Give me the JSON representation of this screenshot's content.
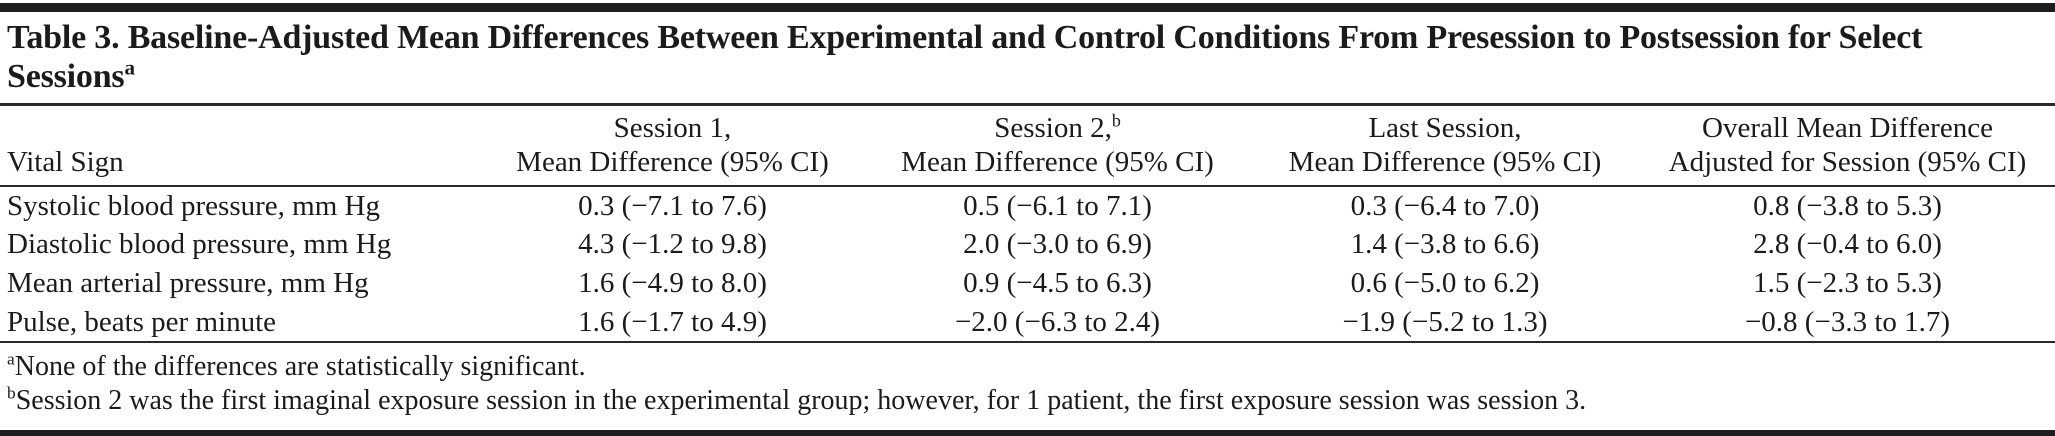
{
  "table": {
    "title": "Table 3. Baseline-Adjusted Mean Differences Between Experimental and Control Conditions From Presession to Postsession for Select Sessions",
    "title_footnote_marker": "a",
    "columns": [
      {
        "line1": "",
        "sup": "",
        "line2": "Vital Sign"
      },
      {
        "line1": "Session 1,",
        "sup": "",
        "line2": "Mean Difference (95% CI)"
      },
      {
        "line1": "Session 2,",
        "sup": "b",
        "line2": "Mean Difference (95% CI)"
      },
      {
        "line1": "Last Session,",
        "sup": "",
        "line2": "Mean Difference (95% CI)"
      },
      {
        "line1": "Overall Mean Difference",
        "sup": "",
        "line2": "Adjusted for Session (95% CI)"
      }
    ],
    "rows": [
      {
        "vital_sign": "Systolic blood pressure, mm Hg",
        "session1": "0.3 (−7.1 to 7.6)",
        "session2": "0.5 (−6.1 to 7.1)",
        "last_session": "0.3 (−6.4 to 7.0)",
        "overall": "0.8 (−3.8 to 5.3)"
      },
      {
        "vital_sign": "Diastolic blood pressure, mm Hg",
        "session1": "4.3 (−1.2 to 9.8)",
        "session2": "2.0 (−3.0 to 6.9)",
        "last_session": "1.4 (−3.8 to 6.6)",
        "overall": "2.8 (−0.4 to 6.0)"
      },
      {
        "vital_sign": "Mean arterial pressure, mm Hg",
        "session1": "1.6 (−4.9 to 8.0)",
        "session2": "0.9 (−4.5 to 6.3)",
        "last_session": "0.6 (−5.0 to 6.2)",
        "overall": "1.5 (−2.3 to 5.3)"
      },
      {
        "vital_sign": "Pulse, beats per minute",
        "session1": "1.6 (−1.7 to 4.9)",
        "session2": "−2.0 (−6.3 to 2.4)",
        "last_session": "−1.9 (−5.2 to 1.3)",
        "overall": "−0.8 (−3.3 to 1.7)"
      }
    ],
    "footnotes": [
      {
        "marker": "a",
        "text": "None of the differences are statistically significant."
      },
      {
        "marker": "b",
        "text": "Session 2 was the first imaginal exposure session in the experimental group; however, for 1 patient, the first exposure session was session 3."
      }
    ]
  },
  "colors": {
    "text": "#1b1b1b",
    "rule": "#2a2a2a",
    "background": "#ffffff"
  }
}
